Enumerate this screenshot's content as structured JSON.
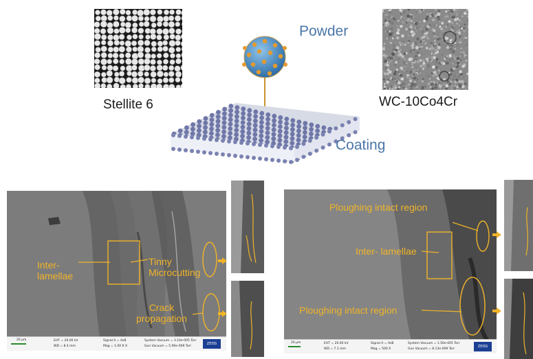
{
  "top": {
    "powder_left_label": "Stellite 6",
    "powder_right_label": "WC-10Co4Cr",
    "powder_label": "Powder",
    "coating_label": "Coating"
  },
  "left_panel": {
    "annotations": {
      "inter_lamellae": "Inter-\nlamellae",
      "tinny_microcutting": "Tinny\nMicrocutting",
      "crack_propagation": "Crack\npropagation"
    },
    "scalebar": {
      "scale": "20 μm",
      "eht": "EHT = 20.00 kV",
      "wd": "WD = 8.4 mm",
      "signal": "Signal A = AsB",
      "mag": "Mag = 1.00 K X",
      "vacuum": "System Vacuum = 3.10e-005 Torr",
      "gun": "Gun Vacuum = 5.90e-009 Torr",
      "logo": "ZEISS"
    }
  },
  "right_panel": {
    "annotations": {
      "ploughing_top": "Ploughing intact region",
      "inter_lamellae": "Inter- lamellae",
      "ploughing_bottom": "Ploughing intact region"
    },
    "scalebar": {
      "scale": "20 μm",
      "eht": "EHT = 20.00 kV",
      "wd": "WD = 7.1 mm",
      "signal": "Signal A = AsB",
      "mag": "Mag = 500 X",
      "vacuum": "System Vacuum = 1.56e-005 Torr",
      "gun": "Gun Vacuum = 8.13e-009 Torr",
      "logo": "ZEISS"
    }
  },
  "colors": {
    "annotation": "#f0b429",
    "blue_label": "#4a76a8",
    "sem_gray": "#7a7a7a"
  }
}
